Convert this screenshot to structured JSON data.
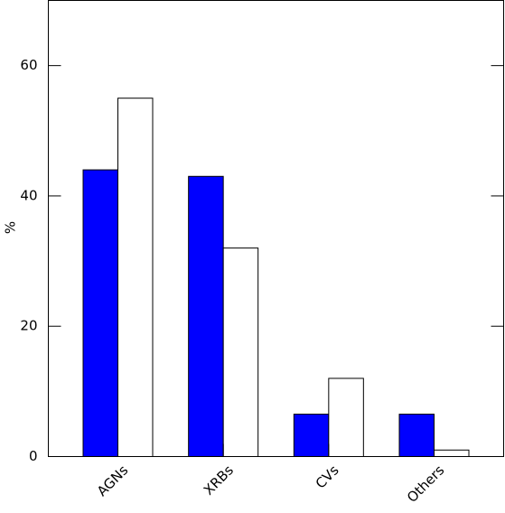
{
  "chart_data": {
    "type": "bar",
    "y_label": "%",
    "categories": [
      "AGNs",
      "XRBs",
      "CVs",
      "Others"
    ],
    "series": [
      {
        "color": "#0000ff",
        "values": [
          44,
          43,
          6.5,
          6.5
        ]
      },
      {
        "color": "#ffffff",
        "values": [
          55,
          32,
          12,
          1
        ]
      }
    ],
    "ylim": [
      0,
      70
    ],
    "yticks": [
      0,
      20,
      40,
      60
    ]
  }
}
